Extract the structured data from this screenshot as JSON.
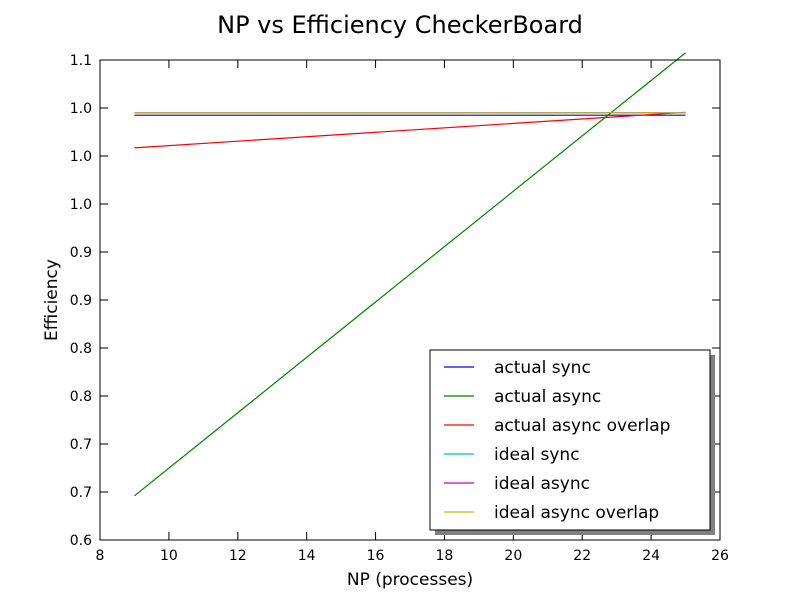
{
  "chart_data": {
    "type": "line",
    "title": "NP vs Efficiency CheckerBoard",
    "xlabel": "NP (processes)",
    "ylabel": "Efficiency",
    "xlim": [
      8,
      26
    ],
    "ylim": [
      0.6,
      1.1
    ],
    "x_ticks": [
      8,
      10,
      12,
      14,
      16,
      18,
      20,
      22,
      24,
      26
    ],
    "y_ticks": [
      0.6,
      0.65,
      0.7,
      0.75,
      0.8,
      0.85,
      0.9,
      0.95,
      1.0,
      1.05,
      1.1
    ],
    "y_tick_labels": [
      "0.6",
      "0.7",
      "0.7",
      "0.8",
      "0.8",
      "0.9",
      "0.9",
      "1.0",
      "1.0",
      "1.0",
      "1.1"
    ],
    "grid": false,
    "legend_position": "lower-right",
    "series": [
      {
        "name": "actual sync",
        "color": "#0000ff",
        "x": [
          9,
          25
        ],
        "y": [
          1.0425,
          1.0425
        ]
      },
      {
        "name": "actual async",
        "color": "#008000",
        "x": [
          9,
          25
        ],
        "y": [
          0.646,
          1.1075
        ]
      },
      {
        "name": "actual async overlap",
        "color": "#ff0000",
        "x": [
          9,
          25
        ],
        "y": [
          1.0085,
          1.0455
        ]
      },
      {
        "name": "ideal sync",
        "color": "#00bfbf",
        "x": [
          9,
          25
        ],
        "y": [
          1.045,
          1.045
        ]
      },
      {
        "name": "ideal async",
        "color": "#bf00bf",
        "x": [
          9,
          25
        ],
        "y": [
          1.045,
          1.045
        ]
      },
      {
        "name": "ideal async overlap",
        "color": "#bfbf00",
        "x": [
          9,
          25
        ],
        "y": [
          1.045,
          1.045
        ]
      }
    ]
  }
}
